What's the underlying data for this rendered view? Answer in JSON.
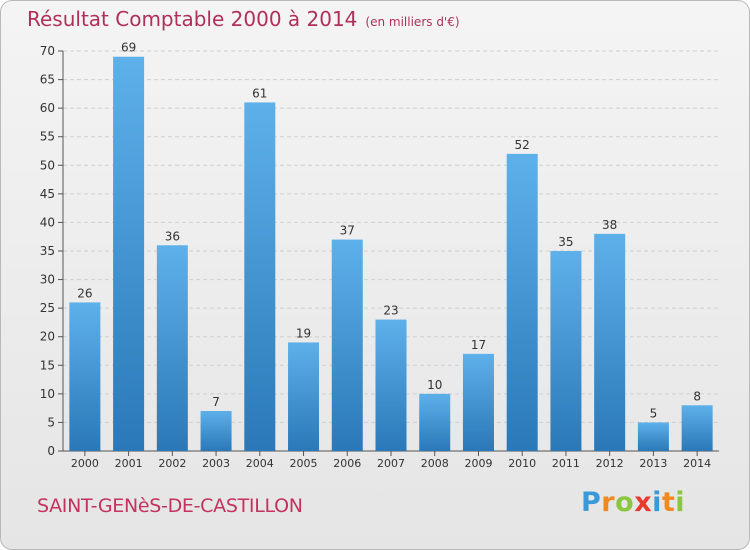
{
  "header": {
    "title": "Résultat Comptable 2000 à 2014",
    "unit": "(en milliers d'€)"
  },
  "footer": {
    "place": "SAINT-GENèS-DE-CASTILLON",
    "brand_letters": [
      "P",
      "r",
      "o",
      "x",
      "i",
      "t",
      "i"
    ],
    "brand_colors": [
      "#3a9ad8",
      "#f08a1c",
      "#8cc63f",
      "#e63a2e",
      "#3a9ad8",
      "#f08a1c",
      "#8cc63f"
    ]
  },
  "colors": {
    "bar_light": "#5eb0ea",
    "bar_dark": "#2a78b8",
    "grid": "#cfcfcf",
    "text": "#333333"
  },
  "chart_data": {
    "type": "bar",
    "categories": [
      "2000",
      "2001",
      "2002",
      "2003",
      "2004",
      "2005",
      "2006",
      "2007",
      "2008",
      "2009",
      "2010",
      "2011",
      "2012",
      "2013",
      "2014"
    ],
    "values": [
      26,
      69,
      36,
      7,
      61,
      19,
      37,
      23,
      10,
      17,
      52,
      35,
      38,
      5,
      8
    ],
    "title": "Résultat Comptable 2000 à 2014",
    "xlabel": "",
    "ylabel": "",
    "ylim": [
      0,
      70
    ],
    "yticks": [
      0,
      5,
      10,
      15,
      20,
      25,
      30,
      35,
      40,
      45,
      50,
      55,
      60,
      65,
      70
    ],
    "grid": true,
    "data_labels": true
  }
}
